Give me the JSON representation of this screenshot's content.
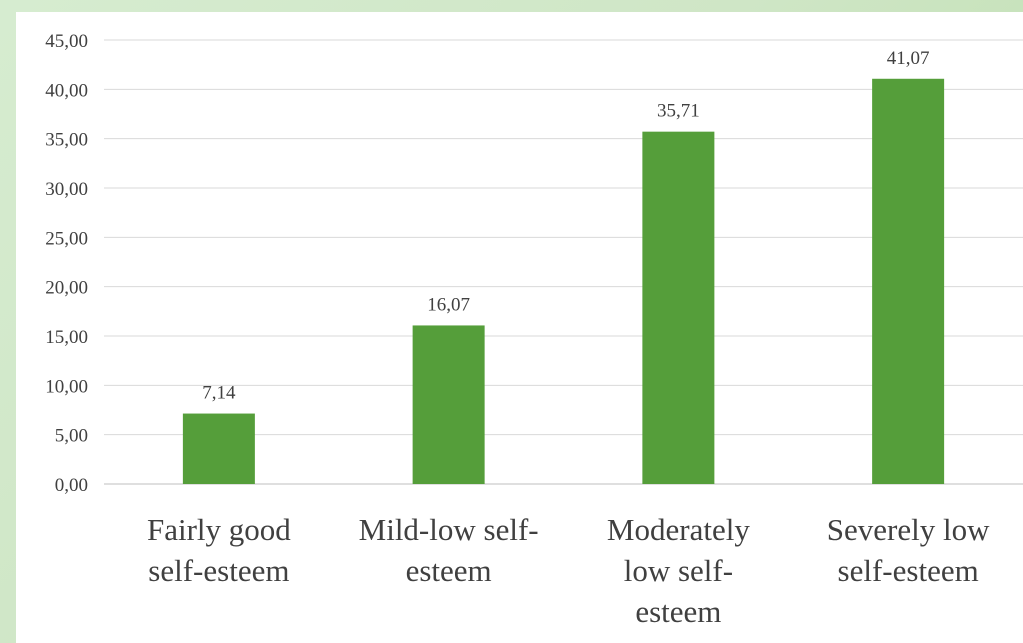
{
  "chart_data": {
    "type": "bar",
    "categories": [
      [
        "Fairly good",
        "self-esteem"
      ],
      [
        "Mild-low self-",
        "esteem"
      ],
      [
        "Moderately",
        "low self-",
        "esteem"
      ],
      [
        "Severely low",
        "self-esteem"
      ]
    ],
    "values": [
      7.14,
      16.07,
      35.71,
      41.07
    ],
    "data_labels": [
      "7,14",
      "16,07",
      "35,71",
      "41,07"
    ],
    "y_ticks": [
      0,
      5,
      10,
      15,
      20,
      25,
      30,
      35,
      40,
      45
    ],
    "y_tick_labels": [
      "0,00",
      "5,00",
      "10,00",
      "15,00",
      "20,00",
      "25,00",
      "30,00",
      "35,00",
      "40,00",
      "45,00"
    ],
    "ylim": [
      0,
      45
    ],
    "title": "",
    "xlabel": "",
    "ylabel": "",
    "grid": true,
    "legend": "none",
    "bar_color": "#559e3a"
  }
}
